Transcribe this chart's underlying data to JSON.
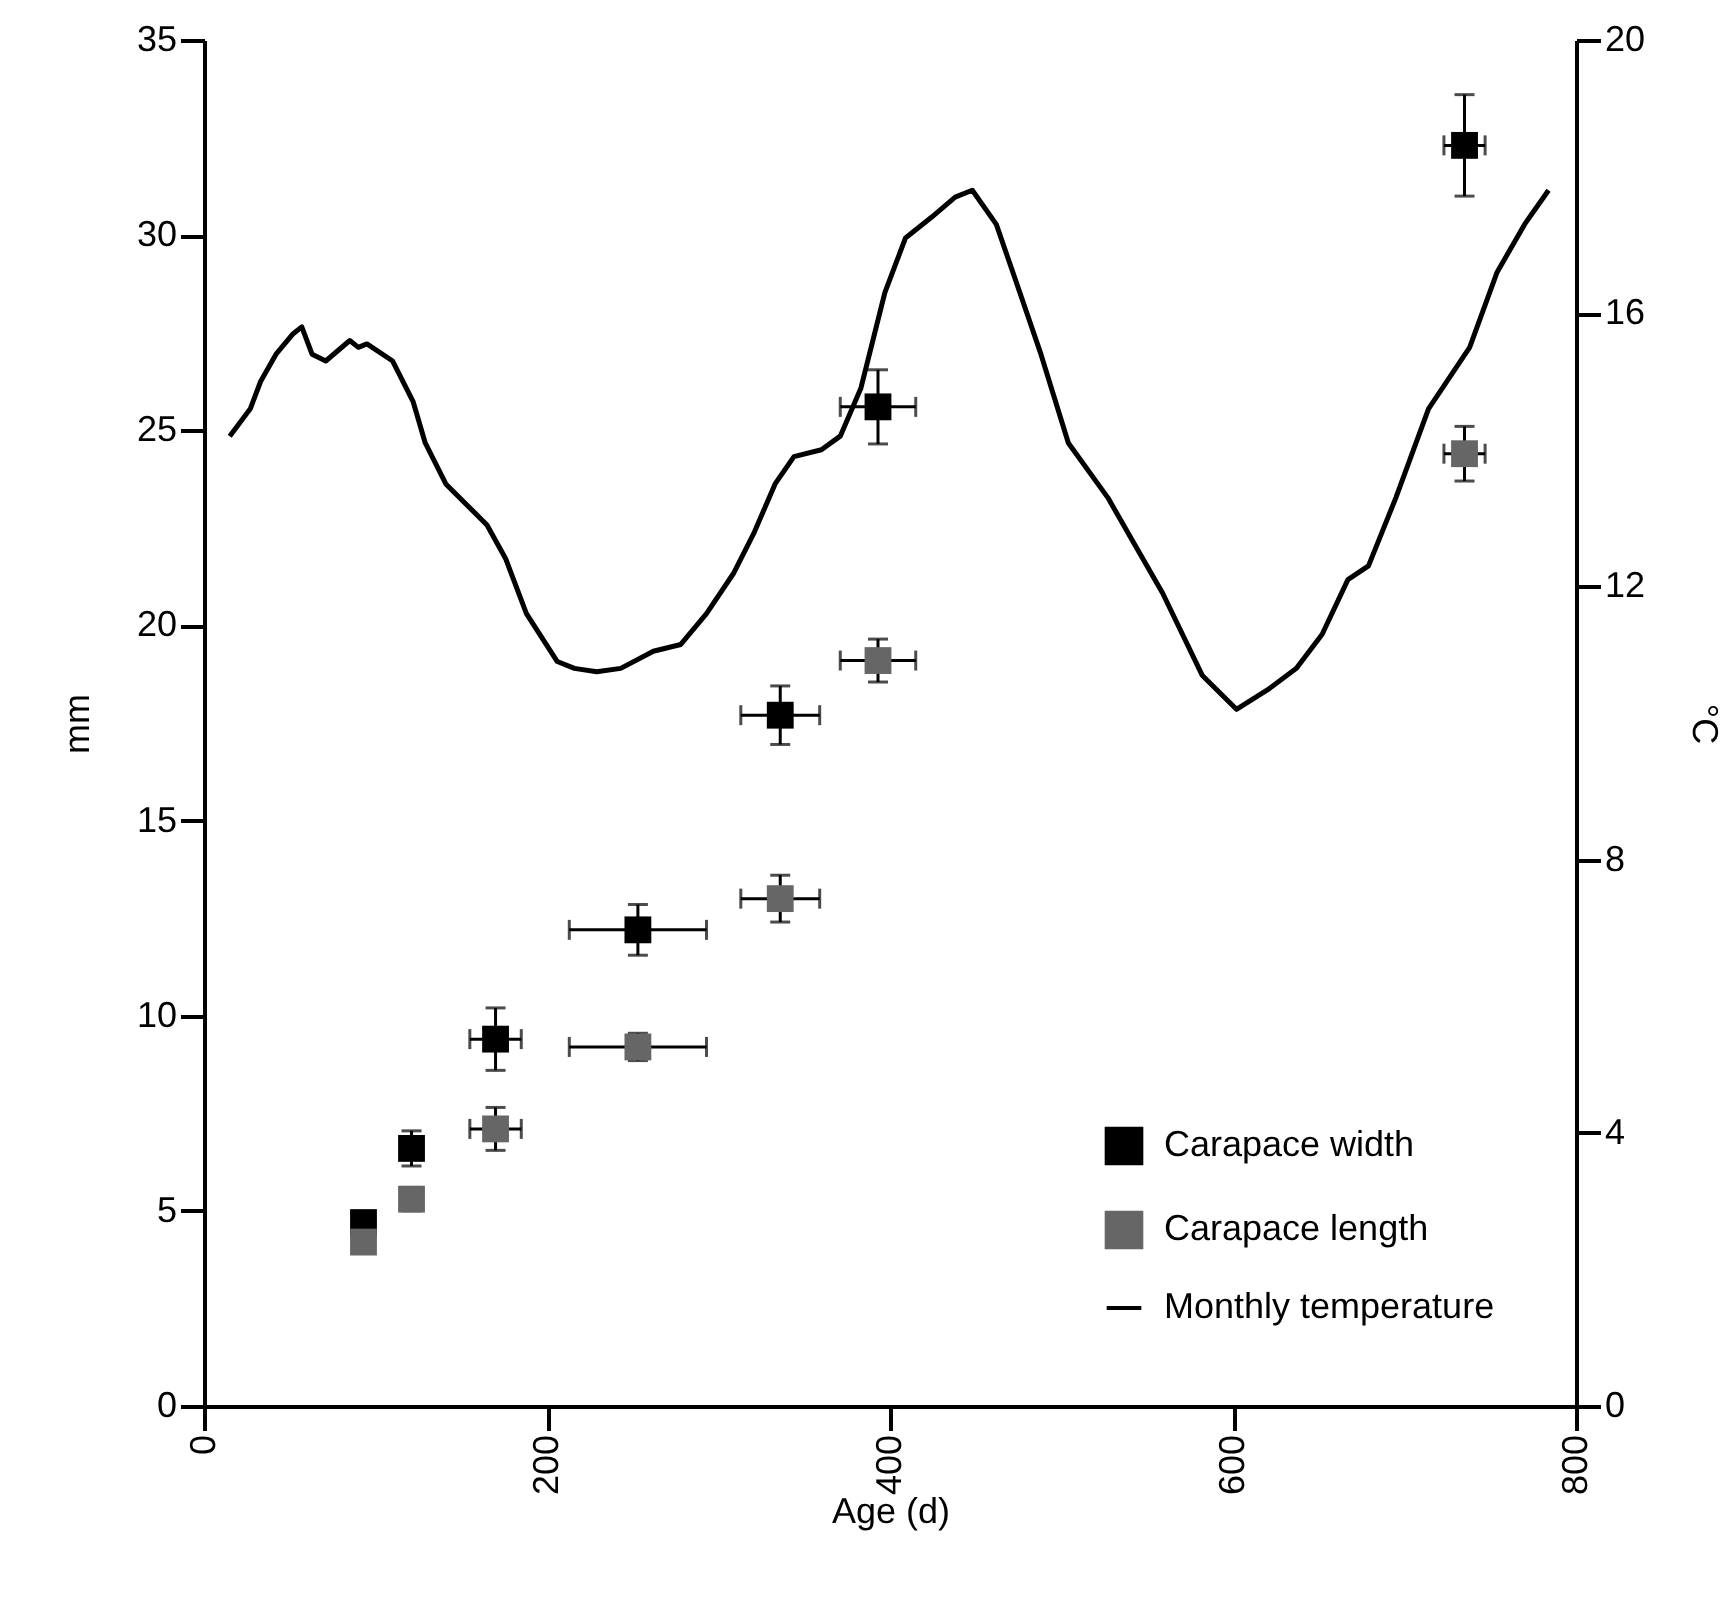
{
  "chart_data": {
    "type": "scatter",
    "xlabel": "Age (d)",
    "ylabel": "mm",
    "y2label": "°C",
    "xlim": [
      0,
      800
    ],
    "xticks": [
      0,
      200,
      400,
      600,
      800
    ],
    "ylim": [
      0,
      35
    ],
    "yticks": [
      0,
      5,
      10,
      15,
      20,
      25,
      30,
      35
    ],
    "y2lim": [
      0,
      20
    ],
    "y2ticks": [
      0,
      4,
      8,
      12,
      16,
      20
    ],
    "legend": "bottom right",
    "grid": false,
    "series": [
      {
        "name": "Carapace width",
        "color": "#000000",
        "marker": "square",
        "x": [
          93,
          121,
          170,
          253,
          336,
          393,
          735
        ],
        "values": [
          4.7,
          6.6,
          9.4,
          12.2,
          17.7,
          25.6,
          32.3
        ],
        "errors": [
          0.2,
          0.45,
          0.8,
          0.65,
          0.75,
          0.95,
          1.3
        ],
        "xerrors": [
          null,
          null,
          15,
          40,
          23,
          22,
          12
        ]
      },
      {
        "name": "Carapace length",
        "color": "#666666",
        "marker": "square",
        "x": [
          93,
          121,
          170,
          253,
          336,
          393,
          735
        ],
        "values": [
          4.2,
          5.3,
          7.1,
          9.2,
          13.0,
          19.1,
          24.4
        ],
        "errors": [
          0.2,
          0.3,
          0.55,
          0.35,
          0.6,
          0.55,
          0.7
        ],
        "xerrors": [
          null,
          null,
          15,
          40,
          23,
          22,
          12
        ]
      },
      {
        "name": "Monthly temperature",
        "color": "#000000",
        "type": "line",
        "marker": "none",
        "axis": "y2",
        "x": [
          15,
          27,
          33,
          42,
          52,
          57,
          63,
          71,
          85,
          90,
          95,
          110,
          122,
          129,
          141,
          153,
          165,
          176,
          188,
          206,
          216,
          229,
          243,
          262,
          278,
          293,
          309,
          321,
          333,
          344,
          360,
          371,
          383,
          397,
          409,
          424,
          438,
          448,
          462,
          473,
          488,
          504,
          527,
          543,
          559,
          582,
          602,
          621,
          637,
          652,
          667,
          679,
          695,
          714,
          738,
          754,
          770,
          784
        ],
        "values": [
          14.2,
          14.6,
          15.0,
          15.4,
          15.7,
          15.8,
          15.4,
          15.3,
          15.6,
          15.5,
          15.55,
          15.3,
          14.7,
          14.1,
          13.5,
          13.2,
          12.9,
          12.4,
          11.6,
          10.9,
          10.8,
          10.75,
          10.8,
          11.05,
          11.15,
          11.6,
          12.2,
          12.8,
          13.5,
          13.9,
          14.0,
          14.2,
          14.9,
          16.3,
          17.1,
          17.4,
          17.7,
          17.8,
          17.3,
          16.5,
          15.4,
          14.1,
          13.3,
          12.6,
          11.9,
          10.7,
          10.2,
          10.5,
          10.8,
          11.3,
          12.1,
          12.3,
          13.3,
          14.6,
          15.5,
          16.6,
          17.3,
          17.8
        ]
      }
    ]
  }
}
